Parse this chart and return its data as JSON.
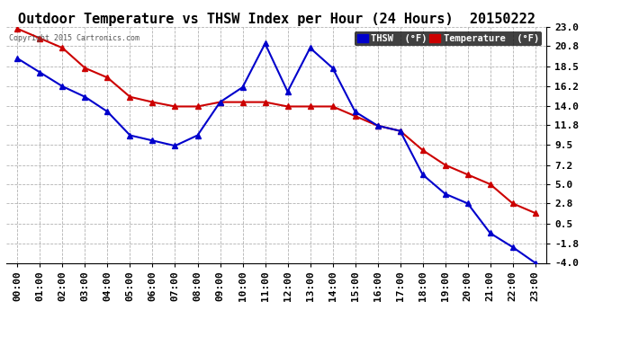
{
  "title": "Outdoor Temperature vs THSW Index per Hour (24 Hours)  20150222",
  "copyright": "Copyright 2015 Cartronics.com",
  "hours": [
    "00:00",
    "01:00",
    "02:00",
    "03:00",
    "04:00",
    "05:00",
    "06:00",
    "07:00",
    "08:00",
    "09:00",
    "10:00",
    "11:00",
    "12:00",
    "13:00",
    "14:00",
    "15:00",
    "16:00",
    "17:00",
    "18:00",
    "19:00",
    "20:00",
    "21:00",
    "22:00",
    "23:00"
  ],
  "thsw": [
    19.4,
    17.8,
    16.2,
    15.0,
    13.3,
    10.6,
    10.0,
    9.4,
    10.6,
    14.4,
    16.1,
    21.1,
    15.6,
    20.6,
    18.3,
    13.3,
    11.7,
    11.1,
    6.1,
    3.9,
    2.8,
    -0.6,
    -2.2,
    -4.0
  ],
  "temperature": [
    22.8,
    21.7,
    20.6,
    18.3,
    17.2,
    15.0,
    14.4,
    13.9,
    13.9,
    14.4,
    14.4,
    14.4,
    13.9,
    13.9,
    13.9,
    12.8,
    11.7,
    11.1,
    8.9,
    7.2,
    6.1,
    5.0,
    2.8,
    1.7
  ],
  "ylim": [
    -4.0,
    23.0
  ],
  "yticks": [
    -4.0,
    -1.8,
    0.5,
    2.8,
    5.0,
    7.2,
    9.5,
    11.8,
    14.0,
    16.2,
    18.5,
    20.8,
    23.0
  ],
  "thsw_color": "#0000cc",
  "temp_color": "#cc0000",
  "background_color": "#ffffff",
  "plot_bg_color": "#ffffff",
  "grid_color": "#aaaaaa",
  "title_fontsize": 11,
  "copyright_fontsize": 6,
  "tick_fontsize": 8,
  "legend_thsw_label": "THSW  (°F)",
  "legend_temp_label": "Temperature  (°F)"
}
